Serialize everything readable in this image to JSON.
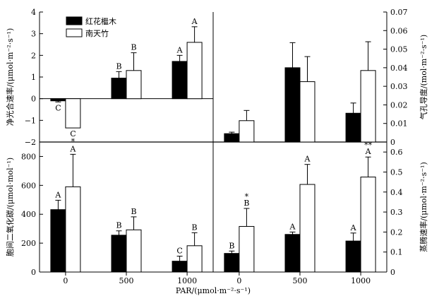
{
  "legend": {
    "series_1": "红花檵木",
    "series_2": "南天竹"
  },
  "x_axis": {
    "label": "PAR/(μmol·m⁻²·s⁻¹)",
    "ticks": [
      "0",
      "500",
      "1000"
    ]
  },
  "chart_data": [
    {
      "id": "net-photosynthesis",
      "type": "bar",
      "ylabel": "净光合速率/(μmol·m⁻²·s⁻¹)",
      "ylim": [
        -2,
        4
      ],
      "yticks": [
        "−2",
        "−1",
        "0",
        "1",
        "2",
        "3",
        "4"
      ],
      "categories": [
        "0",
        "500",
        "1000"
      ],
      "series": [
        {
          "name": "红花檵木",
          "values": [
            -0.1,
            0.95,
            1.72
          ],
          "errors": [
            0.05,
            0.3,
            0.28
          ],
          "labels": [
            "C",
            "B",
            "A"
          ]
        },
        {
          "name": "南天竹",
          "values": [
            -1.35,
            1.3,
            2.6
          ],
          "errors": [
            0.0,
            0.82,
            0.72
          ],
          "labels": [
            "C",
            "B",
            "A"
          ],
          "stars": [
            "*",
            "",
            ""
          ]
        }
      ]
    },
    {
      "id": "stomatal-conductance",
      "type": "bar",
      "ylabel": "气孔导度/(mol·m⁻²·s⁻¹)",
      "ylim": [
        0,
        0.07
      ],
      "yticks": [
        "0",
        "0.01",
        "0.02",
        "0.03",
        "0.04",
        "0.05",
        "0.06",
        "0.07"
      ],
      "categories": [
        "0",
        "500",
        "1000"
      ],
      "series": [
        {
          "name": "红花檵木",
          "values": [
            0.0045,
            0.04,
            0.0155
          ],
          "errors": [
            0.0008,
            0.0135,
            0.0055
          ],
          "labels": [
            "",
            "",
            ""
          ]
        },
        {
          "name": "南天竹",
          "values": [
            0.0115,
            0.0325,
            0.0385
          ],
          "errors": [
            0.0055,
            0.0135,
            0.0155
          ],
          "labels": [
            "",
            "",
            ""
          ]
        }
      ]
    },
    {
      "id": "intercellular-co2",
      "type": "bar",
      "ylabel": "胞间二氧化碳/(μmol·mol⁻¹)",
      "ylim": [
        0,
        900
      ],
      "yticks": [
        "0",
        "200",
        "400",
        "600",
        "800"
      ],
      "categories": [
        "0",
        "500",
        "1000"
      ],
      "series": [
        {
          "name": "红花檵木",
          "values": [
            432,
            255,
            75
          ],
          "errors": [
            65,
            30,
            35
          ],
          "labels": [
            "A",
            "B",
            "C"
          ]
        },
        {
          "name": "南天竹",
          "values": [
            590,
            292,
            182
          ],
          "errors": [
            225,
            90,
            90
          ],
          "labels": [
            "A",
            "B",
            "B"
          ]
        }
      ]
    },
    {
      "id": "transpiration",
      "type": "bar",
      "ylabel": "蒸腾速率/(μmol·m⁻²·s⁻¹)",
      "ylim": [
        0,
        0.65
      ],
      "yticks": [
        "0",
        "0.1",
        "0.2",
        "0.3",
        "0.4",
        "0.5",
        "0.6"
      ],
      "categories": [
        "0",
        "500",
        "1000"
      ],
      "series": [
        {
          "name": "红花檵木",
          "values": [
            0.093,
            0.188,
            0.155
          ],
          "errors": [
            0.012,
            0.012,
            0.04
          ],
          "labels": [
            "B",
            "A",
            "A"
          ]
        },
        {
          "name": "南天竹",
          "values": [
            0.228,
            0.438,
            0.475
          ],
          "errors": [
            0.09,
            0.1,
            0.1
          ],
          "labels": [
            "B",
            "A",
            "A"
          ],
          "stars": [
            "*",
            "",
            "**"
          ]
        }
      ]
    }
  ]
}
